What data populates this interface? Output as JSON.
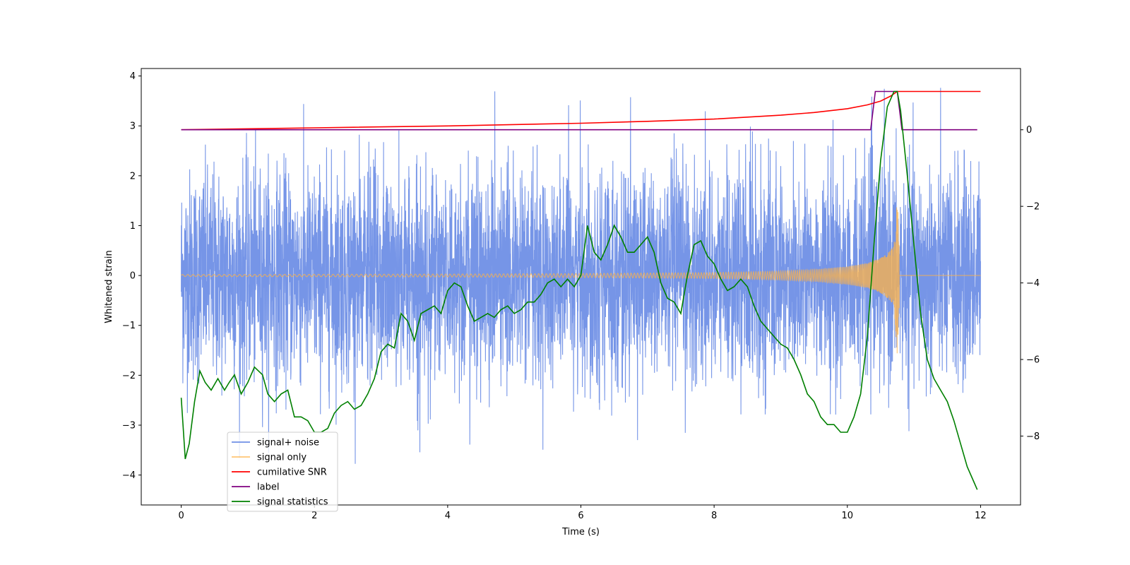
{
  "chart_data": {
    "type": "line",
    "title": "",
    "xlabel": "Time (s)",
    "ylabel": "Whitened strain",
    "y2label": "",
    "xlim": [
      -0.6,
      12.6
    ],
    "ylim": [
      -4.6,
      4.15
    ],
    "y2lim": [
      -9.8,
      1.6
    ],
    "x_ticks": [
      0,
      2,
      4,
      6,
      8,
      10,
      12
    ],
    "x_tick_labels": [
      "0",
      "2",
      "4",
      "6",
      "8",
      "10",
      "12"
    ],
    "y_ticks": [
      -4,
      -3,
      -2,
      -1,
      0,
      1,
      2,
      3,
      4
    ],
    "y_tick_labels": [
      "−4",
      "−3",
      "−2",
      "−1",
      "0",
      "1",
      "2",
      "3",
      "4"
    ],
    "y2_ticks": [
      -8,
      -6,
      -4,
      -2,
      0
    ],
    "y2_tick_labels": [
      "−8",
      "−6",
      "−4",
      "−2",
      "0"
    ],
    "grid": false,
    "legend_position": "bottom-left",
    "colors": {
      "signal_noise": "#6f8fe6",
      "signal_only": "#ffb347",
      "cumulative_snr": "#ff0000",
      "label": "#800080",
      "signal_statistics": "#008000"
    },
    "series": [
      {
        "name": "signal+ noise",
        "axis": "left",
        "description_kind": "dense noise, roughly Gaussian, sd≈1.0, spikes to ±3.8",
        "x_range": [
          0,
          12
        ],
        "approx_envelope": [
          -3.9,
          3.8
        ]
      },
      {
        "name": "signal only",
        "axis": "left",
        "x": [
          0,
          2,
          4,
          6,
          7,
          8,
          9,
          9.5,
          10,
          10.3,
          10.5,
          10.6,
          10.7,
          10.75,
          10.8,
          12
        ],
        "amplitude": [
          0.02,
          0.025,
          0.03,
          0.04,
          0.05,
          0.06,
          0.09,
          0.12,
          0.18,
          0.25,
          0.35,
          0.45,
          0.6,
          1.6,
          0,
          0
        ]
      },
      {
        "name": "cumilative SNR",
        "axis": "right",
        "x": [
          0,
          2,
          4,
          6,
          7,
          8,
          9,
          9.5,
          10,
          10.3,
          10.5,
          10.65,
          10.75,
          10.8,
          12
        ],
        "y": [
          0.0,
          0.05,
          0.1,
          0.17,
          0.22,
          0.28,
          0.38,
          0.45,
          0.55,
          0.65,
          0.75,
          0.88,
          1.0,
          1.0,
          1.0
        ]
      },
      {
        "name": "label",
        "axis": "right",
        "x": [
          0,
          10.35,
          10.42,
          10.75,
          10.82,
          11.95
        ],
        "y": [
          0,
          0,
          1,
          1,
          0,
          0
        ]
      },
      {
        "name": "signal statistics",
        "axis": "right",
        "x": [
          0,
          0.06,
          0.12,
          0.2,
          0.28,
          0.36,
          0.45,
          0.55,
          0.65,
          0.72,
          0.8,
          0.9,
          1.0,
          1.1,
          1.22,
          1.3,
          1.4,
          1.5,
          1.6,
          1.7,
          1.8,
          1.9,
          2.0,
          2.1,
          2.2,
          2.3,
          2.4,
          2.5,
          2.6,
          2.7,
          2.8,
          2.9,
          3.0,
          3.1,
          3.2,
          3.3,
          3.4,
          3.5,
          3.6,
          3.7,
          3.8,
          3.9,
          4.0,
          4.1,
          4.2,
          4.3,
          4.4,
          4.5,
          4.6,
          4.7,
          4.8,
          4.9,
          5.0,
          5.1,
          5.2,
          5.3,
          5.4,
          5.5,
          5.6,
          5.7,
          5.8,
          5.9,
          6.0,
          6.1,
          6.2,
          6.3,
          6.4,
          6.5,
          6.6,
          6.7,
          6.8,
          6.9,
          7.0,
          7.1,
          7.2,
          7.3,
          7.4,
          7.5,
          7.6,
          7.7,
          7.8,
          7.9,
          8.0,
          8.1,
          8.2,
          8.3,
          8.4,
          8.5,
          8.6,
          8.7,
          8.8,
          8.9,
          9.0,
          9.1,
          9.2,
          9.3,
          9.4,
          9.5,
          9.6,
          9.7,
          9.8,
          9.9,
          10.0,
          10.1,
          10.2,
          10.3,
          10.4,
          10.5,
          10.6,
          10.7,
          10.75,
          10.8,
          10.9,
          11.0,
          11.1,
          11.2,
          11.3,
          11.4,
          11.5,
          11.6,
          11.7,
          11.8,
          11.9,
          11.95
        ],
        "y": [
          -7.0,
          -8.6,
          -8.2,
          -7.1,
          -6.3,
          -6.6,
          -6.8,
          -6.5,
          -6.8,
          -6.6,
          -6.4,
          -6.9,
          -6.6,
          -6.2,
          -6.4,
          -6.9,
          -7.1,
          -6.9,
          -6.8,
          -7.5,
          -7.5,
          -7.6,
          -7.9,
          -7.9,
          -7.8,
          -7.4,
          -7.2,
          -7.1,
          -7.3,
          -7.2,
          -6.9,
          -6.5,
          -5.8,
          -5.6,
          -5.7,
          -4.8,
          -5.0,
          -5.5,
          -4.8,
          -4.7,
          -4.6,
          -4.8,
          -4.2,
          -4.0,
          -4.1,
          -4.6,
          -5.0,
          -4.9,
          -4.8,
          -4.9,
          -4.7,
          -4.6,
          -4.8,
          -4.7,
          -4.5,
          -4.5,
          -4.3,
          -4.0,
          -3.9,
          -4.1,
          -3.9,
          -4.1,
          -3.8,
          -2.5,
          -3.2,
          -3.4,
          -3.0,
          -2.5,
          -2.8,
          -3.2,
          -3.2,
          -3.0,
          -2.8,
          -3.2,
          -4.0,
          -4.4,
          -4.5,
          -4.8,
          -3.8,
          -3.0,
          -2.9,
          -3.3,
          -3.5,
          -3.9,
          -4.2,
          -4.1,
          -3.9,
          -4.1,
          -4.6,
          -5.0,
          -5.2,
          -5.4,
          -5.6,
          -5.7,
          -6.0,
          -6.4,
          -6.9,
          -7.1,
          -7.5,
          -7.7,
          -7.7,
          -7.9,
          -7.9,
          -7.5,
          -6.9,
          -5.4,
          -3.0,
          -0.8,
          0.6,
          1.0,
          1.0,
          0.5,
          -1.2,
          -3.0,
          -4.8,
          -6.0,
          -6.5,
          -6.8,
          -7.1,
          -7.6,
          -8.2,
          -8.8,
          -9.2,
          -9.4
        ]
      }
    ]
  }
}
